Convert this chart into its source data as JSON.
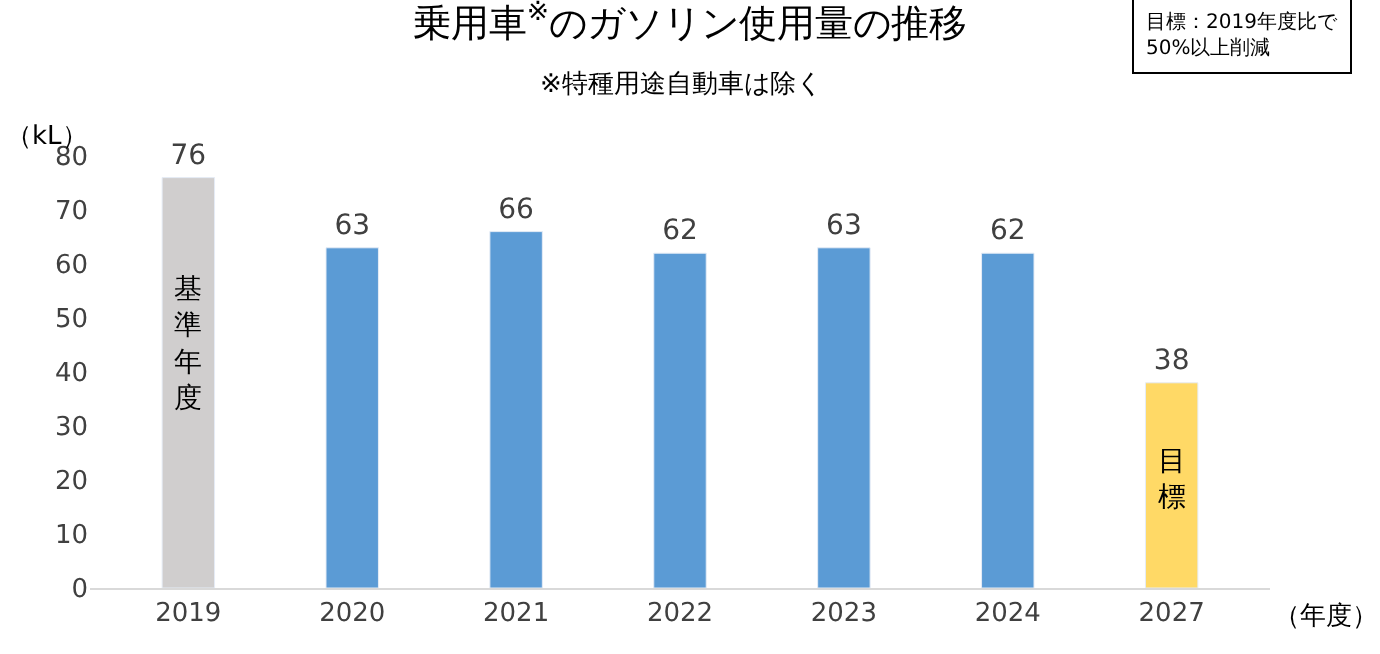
{
  "chart_data": {
    "type": "bar",
    "title": "乗用車$^{※}$のガソリン使用量の推移",
    "subtitle": "※特種用途自動車は除く",
    "ylabel": "（kL）",
    "xlabel": "（年度）",
    "categories": [
      "2019",
      "2020",
      "2021",
      "2022",
      "2023",
      "2024",
      "2027"
    ],
    "values": [
      76,
      63,
      66,
      62,
      63,
      62,
      38
    ],
    "colors": [
      "#d0cece",
      "#5b9bd5",
      "#5b9bd5",
      "#5b9bd5",
      "#5b9bd5",
      "#5b9bd5",
      "#ffd966"
    ],
    "ylim": [
      0,
      80
    ],
    "yticks": [
      0,
      10,
      20,
      30,
      40,
      50,
      60,
      70,
      80
    ],
    "data_labels": true,
    "annotations": [
      "基準年度",
      "目標",
      "目標：2019年度比で\n50%以上削減"
    ]
  }
}
